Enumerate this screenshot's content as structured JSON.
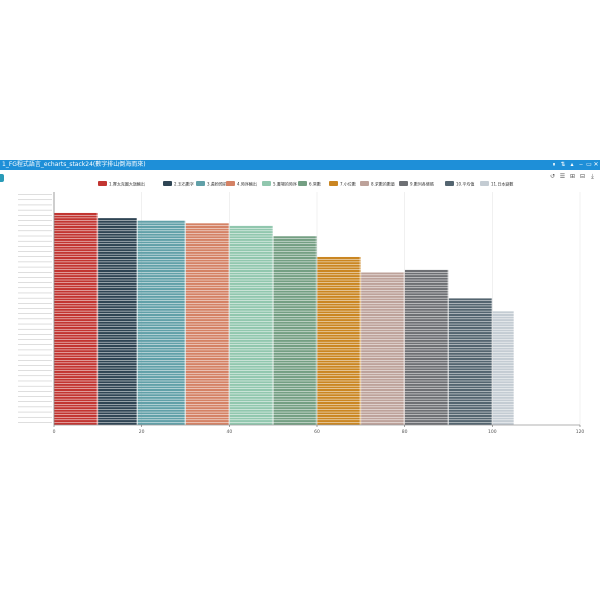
{
  "window": {
    "title": "1_FG程式語言_echarts_stack24(數字排山倒海而來)",
    "buttons": [
      "⏸",
      "⇅",
      "▴",
      "‒",
      "▭",
      "✕"
    ]
  },
  "toolbox": {
    "icons": [
      "restore-icon",
      "data-view-icon",
      "zoom-icon",
      "zoom-reset-icon",
      "save-image-icon"
    ],
    "glyphs": [
      "↺",
      "☰",
      "⊞",
      "⊟",
      "⤓"
    ]
  },
  "chart_data": {
    "type": "bar",
    "orientation": "horizontal",
    "stacked": true,
    "legend_position": "top",
    "grid": true,
    "xlim": [
      0,
      120
    ],
    "x_ticks": [
      "0",
      "20",
      "40",
      "60",
      "80",
      "100",
      "120"
    ],
    "series": [
      {
        "name": "1.賽太克圖大旗輸出",
        "color": "#c23531",
        "from": 0,
        "to": 10
      },
      {
        "name": "2.玉石數字",
        "color": "#2f4554",
        "from": 10,
        "to": 19
      },
      {
        "name": "3.黃粉預前等",
        "color": "#61a0a8",
        "from": 19,
        "to": 30
      },
      {
        "name": "4.時序輸出",
        "color": "#d48265",
        "from": 30,
        "to": 40
      },
      {
        "name": "5.書場的時序",
        "color": "#91c7ae",
        "from": 40,
        "to": 50
      },
      {
        "name": "6.常數",
        "color": "#749f83",
        "from": 50,
        "to": 60
      },
      {
        "name": "7.小位數",
        "color": "#ca8622",
        "from": 60,
        "to": 70
      },
      {
        "name": "8.求數的數量",
        "color": "#bda29a",
        "from": 70,
        "to": 80
      },
      {
        "name": "9.數列各條碼",
        "color": "#6e7074",
        "from": 80,
        "to": 90
      },
      {
        "name": "10.平均值",
        "color": "#546570",
        "from": 90,
        "to": 100
      },
      {
        "name": "11.日本變數",
        "color": "#c4ccd3",
        "from": 100,
        "to": 105
      }
    ],
    "row_count": 90,
    "series_start_row": [
      8,
      10,
      11,
      12,
      13,
      17,
      25,
      31,
      30,
      41,
      46
    ],
    "series_row_ends": [
      [
        10,
        10
      ],
      [
        19,
        19
      ],
      [
        30,
        30
      ],
      [
        40,
        40
      ],
      [
        50,
        50
      ],
      [
        60,
        60
      ],
      [
        70,
        70
      ],
      [
        80,
        80
      ],
      [
        90,
        90
      ],
      [
        100,
        100
      ],
      [
        105,
        105
      ]
    ]
  }
}
